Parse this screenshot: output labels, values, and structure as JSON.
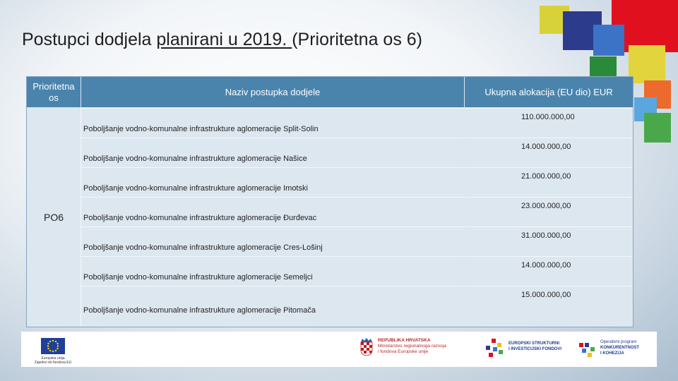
{
  "slide": {
    "title_before": "Postupci dodjela ",
    "title_underlined": "planirani u 2019. ",
    "title_after": "(Prioritetna os 6)"
  },
  "table": {
    "headers": {
      "priority_axis": "Prioritetna os",
      "procedure_name": "Naziv postupka dodjele",
      "allocation": "Ukupna alokacija (EU dio) EUR"
    },
    "axis": "PO6",
    "rows": [
      {
        "name": "Poboljšanje vodno-komunalne infrastrukture aglomeracije Split-Solin",
        "amount": "110.000.000,00"
      },
      {
        "name": "Poboljšanje vodno-komunalne infrastrukture aglomeracije Našice",
        "amount": "14.000.000,00"
      },
      {
        "name": "Poboljšanje vodno-komunalne infrastrukture aglomeracije Imotski",
        "amount": "21.000.000,00"
      },
      {
        "name": "Poboljšanje vodno-komunalne infrastrukture aglomeracije Đurđevac",
        "amount": "23.000.000,00"
      },
      {
        "name": "Poboljšanje vodno-komunalne infrastrukture aglomeracije Cres-Lošinj",
        "amount": "31.000.000,00"
      },
      {
        "name": "Poboljšanje vodno-komunalne infrastrukture aglomeracije Semeljci",
        "amount": "14.000.000,00"
      },
      {
        "name": "Poboljšanje vodno-komunalne infrastrukture aglomeracije Pitomača",
        "amount": "15.000.000,00"
      }
    ]
  },
  "footer": {
    "eu_line1": "Europska unija",
    "eu_line2": "Zajedno do fondova EU",
    "rh_line1": "REPUBLIKA HRVATSKA",
    "rh_line2": "Ministarstvo regionalnoga razvoja",
    "rh_line3": "i fondova Europske unije",
    "esi_line1": "EUROPSKI STRUKTURNI",
    "esi_line2": "I INVESTICIJSKI FONDOVI",
    "op_line1": "Operativni program",
    "op_line2": "KONKURENTNOST",
    "op_line3": "I KOHEZIJA"
  },
  "colors": {
    "header_bg": "#4a84ad",
    "cell_bg": "#dde7f0",
    "accent_red": "#e0101e",
    "accent_navy": "#2c3b8c",
    "accent_green": "#4aa84a"
  }
}
